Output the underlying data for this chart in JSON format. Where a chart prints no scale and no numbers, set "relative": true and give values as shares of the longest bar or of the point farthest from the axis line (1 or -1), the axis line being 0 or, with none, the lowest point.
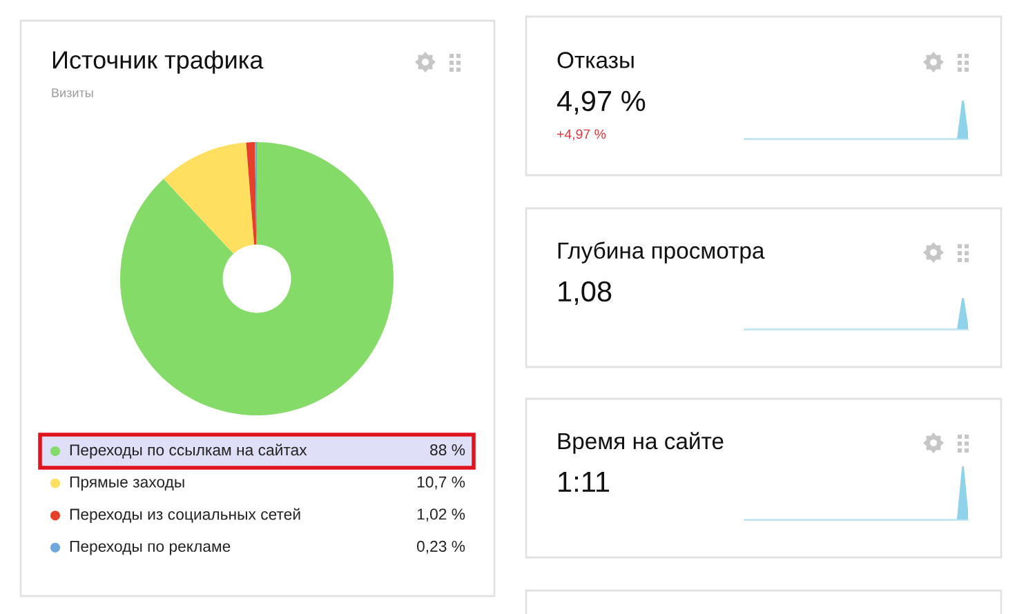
{
  "chart_data": [
    {
      "type": "donut",
      "title": "Источник трафика",
      "subtitle": "Визиты",
      "categories": [
        "Переходы по ссылкам на сайтах",
        "Прямые заходы",
        "Переходы из социальных сетей",
        "Переходы по рекламе"
      ],
      "values": [
        88,
        10.7,
        1.02,
        0.23
      ],
      "colors": [
        "#84db67",
        "#ffdf5f",
        "#e6402a",
        "#6fa8dc"
      ],
      "value_labels": [
        "88 %",
        "10,7 %",
        "1,02 %",
        "0,23 %"
      ],
      "legend": "bottom"
    },
    {
      "type": "area",
      "relative": true,
      "title": "Отказы",
      "annotations": [
        "4,97 %",
        "+4,97 %"
      ],
      "categories": [
        null,
        null,
        null,
        null,
        null,
        null,
        null,
        null,
        null,
        null,
        null,
        null,
        null,
        null,
        null,
        null,
        null,
        null,
        null,
        null,
        null,
        null,
        null,
        null,
        null,
        null,
        null,
        null,
        null,
        null,
        null,
        null,
        null,
        null,
        null,
        null,
        null,
        null,
        null,
        null,
        null,
        null,
        null,
        null,
        null
      ],
      "series": [
        {
          "color": "#8fd3ea",
          "values": [
            0,
            0,
            0,
            0,
            0,
            0,
            0,
            0,
            0,
            0,
            0,
            0,
            0,
            0,
            0,
            0,
            0,
            0,
            0,
            0,
            0,
            0,
            0,
            0,
            0,
            0,
            0,
            0,
            0,
            0,
            0,
            0,
            0,
            0,
            0,
            0,
            0,
            0,
            0,
            0,
            0,
            0,
            0,
            1,
            0
          ]
        }
      ]
    },
    {
      "type": "area",
      "relative": true,
      "title": "Глубина просмотра",
      "annotations": [
        "1,08"
      ],
      "categories": [
        null,
        null,
        null,
        null,
        null,
        null,
        null,
        null,
        null,
        null,
        null,
        null,
        null,
        null,
        null,
        null,
        null,
        null,
        null,
        null,
        null,
        null,
        null,
        null,
        null,
        null,
        null,
        null,
        null,
        null,
        null,
        null,
        null,
        null,
        null,
        null,
        null,
        null,
        null,
        null,
        null,
        null,
        null,
        null,
        null
      ],
      "series": [
        {
          "color": "#8fd3ea",
          "values": [
            0,
            0,
            0,
            0,
            0,
            0,
            0,
            0,
            0,
            0,
            0,
            0,
            0,
            0,
            0,
            0,
            0,
            0,
            0,
            0,
            0,
            0,
            0,
            0,
            0,
            0,
            0,
            0,
            0,
            0,
            0,
            0,
            0,
            0,
            0,
            0,
            0,
            0,
            0,
            0,
            0,
            0,
            0,
            1,
            0
          ]
        }
      ]
    },
    {
      "type": "area",
      "relative": true,
      "title": "Время на сайте",
      "annotations": [
        "1:11"
      ],
      "categories": [
        null,
        null,
        null,
        null,
        null,
        null,
        null,
        null,
        null,
        null,
        null,
        null,
        null,
        null,
        null,
        null,
        null,
        null,
        null,
        null,
        null,
        null,
        null,
        null,
        null,
        null,
        null,
        null,
        null,
        null,
        null,
        null,
        null,
        null,
        null,
        null,
        null,
        null,
        null,
        null,
        null,
        null,
        null,
        null,
        null
      ],
      "series": [
        {
          "color": "#8fd3ea",
          "values": [
            0,
            0,
            0,
            0,
            0,
            0,
            0,
            0,
            0,
            0,
            0,
            0,
            0,
            0,
            0,
            0,
            0,
            0,
            0,
            0,
            0,
            0,
            0,
            0,
            0,
            0,
            0,
            0,
            0,
            0,
            0,
            0,
            0,
            0,
            0,
            0,
            0,
            0,
            0,
            0,
            0,
            0,
            0,
            1,
            0
          ]
        }
      ]
    }
  ]
}
